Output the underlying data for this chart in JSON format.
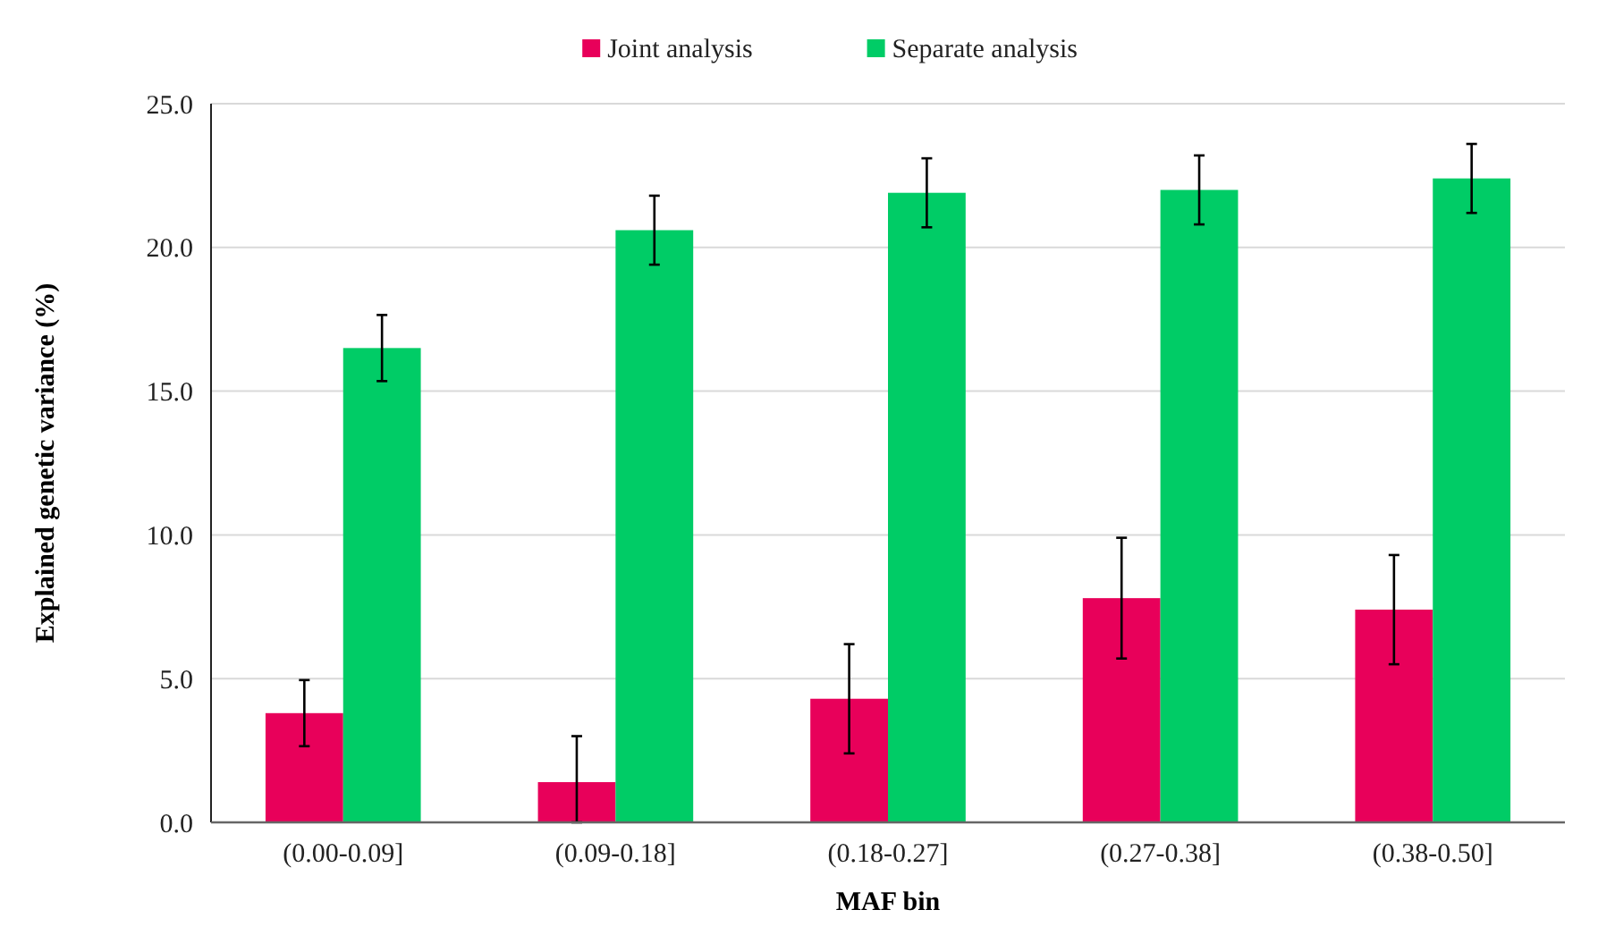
{
  "chart_data": {
    "type": "bar",
    "xlabel": "MAF bin",
    "ylabel": "Explained genetic variance (%)",
    "categories": [
      "(0.00-0.09]",
      "(0.09-0.18]",
      "(0.18-0.27]",
      "(0.27-0.38]",
      "(0.38-0.50]"
    ],
    "series": [
      {
        "name": "Joint analysis",
        "color": "#e8005a",
        "values": [
          3.8,
          1.4,
          4.3,
          7.8,
          7.4
        ],
        "errors": [
          1.15,
          [
            0,
            3.0
          ],
          1.9,
          2.1,
          1.9
        ]
      },
      {
        "name": "Separate analysis",
        "color": "#00cc66",
        "values": [
          16.5,
          20.6,
          21.9,
          22.0,
          22.4
        ],
        "errors": [
          1.15,
          1.2,
          1.2,
          1.2,
          1.2
        ]
      }
    ],
    "ylim": [
      0,
      25
    ],
    "yticks": [
      {
        "value": 0,
        "label": "0.0"
      },
      {
        "value": 5,
        "label": "5.0"
      },
      {
        "value": 10,
        "label": "10.0"
      },
      {
        "value": 15,
        "label": "15.0"
      },
      {
        "value": 20,
        "label": "20.0"
      },
      {
        "value": 25,
        "label": "25.0"
      }
    ],
    "grid": "y",
    "legend": "top"
  }
}
